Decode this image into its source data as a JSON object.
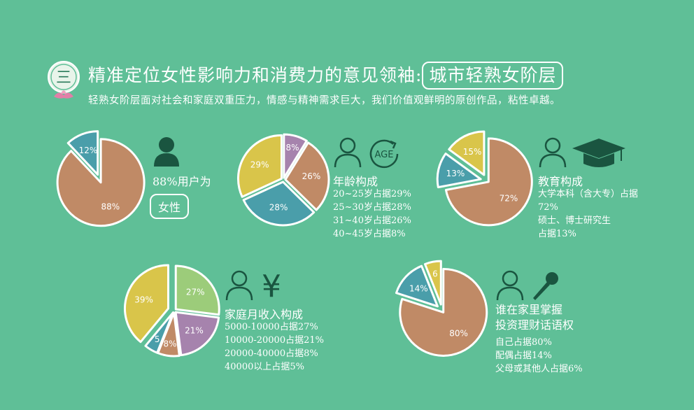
{
  "header": {
    "badge_char": "三",
    "title": "精准定位女性影响力和消费力的意见领袖:",
    "title_boxed": "城市轻熟女阶层",
    "subtitle": "轻熟女阶层面对社会和家庭双重压力，情感与精神需求巨大，我们价值观鲜明的原创作品，粘性卓越。"
  },
  "colors": {
    "background": "#5fbf97",
    "brown": "#c08a66",
    "teal": "#4a9eaa",
    "yellow": "#d9c54a",
    "purple": "#a683ad",
    "green": "#9ccc7a",
    "icon_dark": "#1a5540"
  },
  "icons": [
    "person-icon",
    "age-icon",
    "graduation-cap-icon",
    "yen-icon",
    "microphone-icon"
  ],
  "gender": {
    "label": "88%用户为",
    "boxed": "女性"
  },
  "age": {
    "title": "年龄构成",
    "lines": [
      "20~25岁占据29%",
      "25~30岁占据28%",
      "31~40岁占据26%",
      "40~45岁占据8%"
    ],
    "icon_text": "AGE"
  },
  "education": {
    "title": "教育构成",
    "lines": [
      "大学本科（含大专）占据",
      "72%",
      "硕士、博士研究生",
      "占据13%"
    ]
  },
  "income": {
    "title": "家庭月收入构成",
    "lines": [
      "5000-10000占据27%",
      "10000-20000占据21%",
      "20000-40000占据8%",
      "40000以上占据5%"
    ],
    "icon_text": "¥"
  },
  "finance": {
    "title_lines": [
      "谁在家里掌握",
      "投资理财话语权"
    ],
    "lines": [
      "自己占据80%",
      "配偶占据14%",
      "父母或其他人占据6%"
    ]
  },
  "chart_data": [
    {
      "type": "pie",
      "slices": [
        {
          "label": "88%",
          "value": 88,
          "color": "#c08a66"
        },
        {
          "label": "12%",
          "value": 12,
          "color": "#4a9eaa",
          "exploded": true
        }
      ]
    },
    {
      "type": "pie",
      "slices": [
        {
          "label": "8%",
          "value": 8,
          "color": "#a683ad"
        },
        {
          "label": "26%",
          "value": 26,
          "color": "#c08a66"
        },
        {
          "label": "28%",
          "value": 28,
          "color": "#4a9eaa"
        },
        {
          "label": "29%",
          "value": 29,
          "color": "#d9c54a"
        }
      ]
    },
    {
      "type": "pie",
      "slices": [
        {
          "label": "72%",
          "value": 72,
          "color": "#c08a66"
        },
        {
          "label": "13%",
          "value": 13,
          "color": "#4a9eaa",
          "exploded": true
        },
        {
          "label": "15%",
          "value": 15,
          "color": "#d9c54a",
          "exploded": true
        }
      ]
    },
    {
      "type": "pie",
      "slices": [
        {
          "label": "27%",
          "value": 27,
          "color": "#9ccc7a"
        },
        {
          "label": "21%",
          "value": 21,
          "color": "#a683ad"
        },
        {
          "label": "8%",
          "value": 8,
          "color": "#c08a66"
        },
        {
          "label": "5",
          "value": 5,
          "color": "#4a9eaa"
        },
        {
          "label": "39%",
          "value": 39,
          "color": "#d9c54a",
          "exploded": true
        }
      ]
    },
    {
      "type": "pie",
      "slices": [
        {
          "label": "80%",
          "value": 80,
          "color": "#c08a66"
        },
        {
          "label": "14%",
          "value": 14,
          "color": "#4a9eaa",
          "exploded": true
        },
        {
          "label": "6",
          "value": 6,
          "color": "#d9c54a",
          "exploded": true
        }
      ]
    }
  ]
}
